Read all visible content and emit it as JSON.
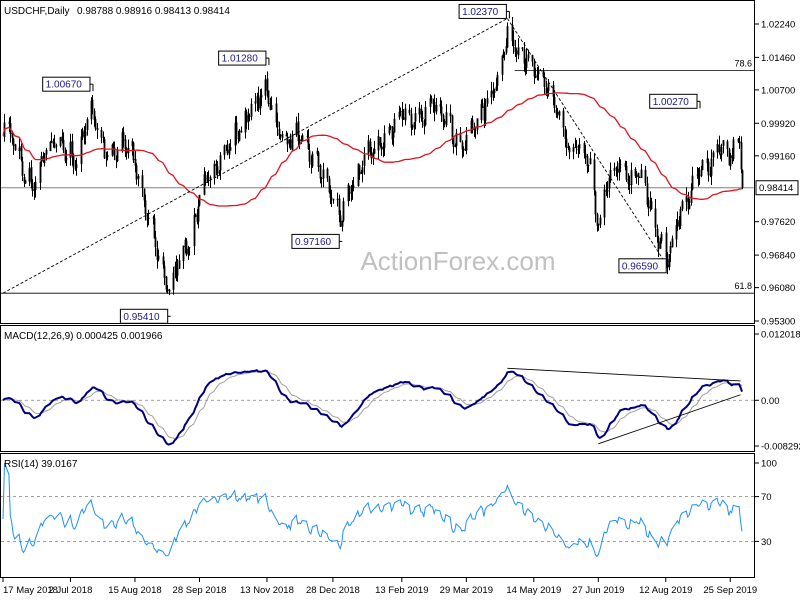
{
  "chart_data": {
    "type": "candlestick",
    "watermark": "ActionForex.com",
    "price_panel": {
      "header_symbol": "USDCHF,Daily",
      "header_ohlc": "0.98788 0.98916 0.98413 0.98414",
      "y_ticks": [
        "1.02240",
        "1.01460",
        "1.00700",
        "0.99920",
        "0.99160",
        "0.98414",
        "0.97620",
        "0.96840",
        "0.96080",
        "0.95300"
      ],
      "y_tick_values": [
        1.0224,
        1.0146,
        1.007,
        0.9992,
        0.9916,
        0.98414,
        0.9762,
        0.9684,
        0.9608,
        0.953
      ],
      "current_price_label": "0.98414",
      "current_price": 0.98414,
      "annotations": [
        {
          "label": "0.95410",
          "date": "2018-09-07",
          "value": 0.9541
        },
        {
          "label": "1.00670",
          "date": "2018-07-16",
          "value": 1.0067
        },
        {
          "label": "1.01280",
          "date": "2018-11-13",
          "value": 1.0128
        },
        {
          "label": "0.97160",
          "date": "2019-01-02",
          "value": 0.9716
        },
        {
          "label": "1.02370",
          "date": "2019-04-26",
          "value": 1.0237
        },
        {
          "label": "0.96590",
          "date": "2019-08-13",
          "value": 0.9659
        },
        {
          "label": "1.00270",
          "date": "2019-09-03",
          "value": 1.0027
        }
      ],
      "fib_levels": [
        {
          "label": "78.6",
          "value": 1.0115
        },
        {
          "label": "61.8",
          "value": 0.9595
        }
      ],
      "trendlines": [
        {
          "from": {
            "date": "2018-05-17",
            "value": 0.9595
          },
          "to": {
            "date": "2019-04-26",
            "value": 1.0237
          }
        },
        {
          "from": {
            "date": "2019-04-26",
            "value": 1.0237
          },
          "to": {
            "date": "2019-08-13",
            "value": 0.9659
          }
        }
      ]
    },
    "macd_panel": {
      "header": "MACD(12,26,9) 0.000425 0.001966",
      "y_ticks": [
        "0.012018",
        "0.00",
        "-0.008292"
      ],
      "y_tick_values": [
        0.012018,
        0.0,
        -0.008292
      ],
      "trendlines": [
        {
          "from": {
            "date": "2019-04-26",
            "value": 0.0058
          },
          "to": {
            "date": "2019-10-02",
            "value": 0.0035
          }
        },
        {
          "from": {
            "date": "2019-06-27",
            "value": -0.0079
          },
          "to": {
            "date": "2019-10-02",
            "value": 0.001
          }
        }
      ]
    },
    "rsi_panel": {
      "header": "RSI(14) 39.0167",
      "y_ticks": [
        "100",
        "70",
        "30"
      ],
      "y_tick_values": [
        100,
        70,
        30
      ]
    },
    "x_tick_labels": [
      "17 May 2018",
      "2 Jul 2018",
      "15 Aug 2018",
      "28 Sep 2018",
      "13 Nov 2018",
      "28 Dec 2018",
      "13 Feb 2019",
      "29 Mar 2019",
      "14 May 2019",
      "27 Jun 2019",
      "12 Aug 2019",
      "25 Sep 2019"
    ],
    "x_tick_dates": [
      "2018-05-17",
      "2018-07-02",
      "2018-08-15",
      "2018-09-28",
      "2018-11-13",
      "2018-12-28",
      "2019-02-13",
      "2019-03-29",
      "2019-05-14",
      "2019-06-27",
      "2019-08-12",
      "2019-09-25"
    ],
    "anchor_closes": [
      [
        "2018-05-17",
        1.0
      ],
      [
        "2018-05-24",
        0.996
      ],
      [
        "2018-05-31",
        0.987
      ],
      [
        "2018-06-07",
        0.985
      ],
      [
        "2018-06-14",
        0.993
      ],
      [
        "2018-06-21",
        0.995
      ],
      [
        "2018-06-28",
        0.993
      ],
      [
        "2018-07-06",
        0.991
      ],
      [
        "2018-07-16",
        1.004
      ],
      [
        "2018-07-23",
        0.995
      ],
      [
        "2018-07-30",
        0.992
      ],
      [
        "2018-08-06",
        0.996
      ],
      [
        "2018-08-13",
        0.993
      ],
      [
        "2018-08-20",
        0.982
      ],
      [
        "2018-08-27",
        0.974
      ],
      [
        "2018-09-03",
        0.965
      ],
      [
        "2018-09-07",
        0.96
      ],
      [
        "2018-09-14",
        0.969
      ],
      [
        "2018-09-21",
        0.972
      ],
      [
        "2018-09-28",
        0.982
      ],
      [
        "2018-10-05",
        0.988
      ],
      [
        "2018-10-12",
        0.992
      ],
      [
        "2018-10-19",
        0.995
      ],
      [
        "2018-10-26",
        0.999
      ],
      [
        "2018-11-02",
        1.003
      ],
      [
        "2018-11-13",
        1.008
      ],
      [
        "2018-11-20",
        0.998
      ],
      [
        "2018-11-27",
        0.996
      ],
      [
        "2018-12-04",
        0.997
      ],
      [
        "2018-12-11",
        0.993
      ],
      [
        "2018-12-18",
        0.99
      ],
      [
        "2018-12-24",
        0.985
      ],
      [
        "2019-01-02",
        0.978
      ],
      [
        "2019-01-09",
        0.984
      ],
      [
        "2019-01-16",
        0.99
      ],
      [
        "2019-01-23",
        0.994
      ],
      [
        "2019-01-30",
        0.995
      ],
      [
        "2019-02-06",
        0.999
      ],
      [
        "2019-02-13",
        1.003
      ],
      [
        "2019-02-20",
        1.0
      ],
      [
        "2019-02-27",
        1.001
      ],
      [
        "2019-03-06",
        1.005
      ],
      [
        "2019-03-13",
        1.003
      ],
      [
        "2019-03-20",
        0.997
      ],
      [
        "2019-03-27",
        0.994
      ],
      [
        "2019-04-03",
        1.0
      ],
      [
        "2019-04-10",
        1.003
      ],
      [
        "2019-04-17",
        1.009
      ],
      [
        "2019-04-26",
        1.02
      ],
      [
        "2019-05-03",
        1.018
      ],
      [
        "2019-05-10",
        1.014
      ],
      [
        "2019-05-17",
        1.01
      ],
      [
        "2019-05-24",
        1.008
      ],
      [
        "2019-05-31",
        1.001
      ],
      [
        "2019-06-07",
        0.992
      ],
      [
        "2019-06-14",
        0.995
      ],
      [
        "2019-06-21",
        0.989
      ],
      [
        "2019-06-27",
        0.976
      ],
      [
        "2019-07-04",
        0.987
      ],
      [
        "2019-07-11",
        0.99
      ],
      [
        "2019-07-18",
        0.987
      ],
      [
        "2019-07-25",
        0.988
      ],
      [
        "2019-08-01",
        0.981
      ],
      [
        "2019-08-08",
        0.972
      ],
      [
        "2019-08-13",
        0.968
      ],
      [
        "2019-08-20",
        0.978
      ],
      [
        "2019-08-27",
        0.982
      ],
      [
        "2019-09-03",
        0.988
      ],
      [
        "2019-09-10",
        0.99
      ],
      [
        "2019-09-17",
        0.995
      ],
      [
        "2019-09-24",
        0.992
      ],
      [
        "2019-10-01",
        0.996
      ],
      [
        "2019-10-03",
        0.9841
      ]
    ]
  }
}
